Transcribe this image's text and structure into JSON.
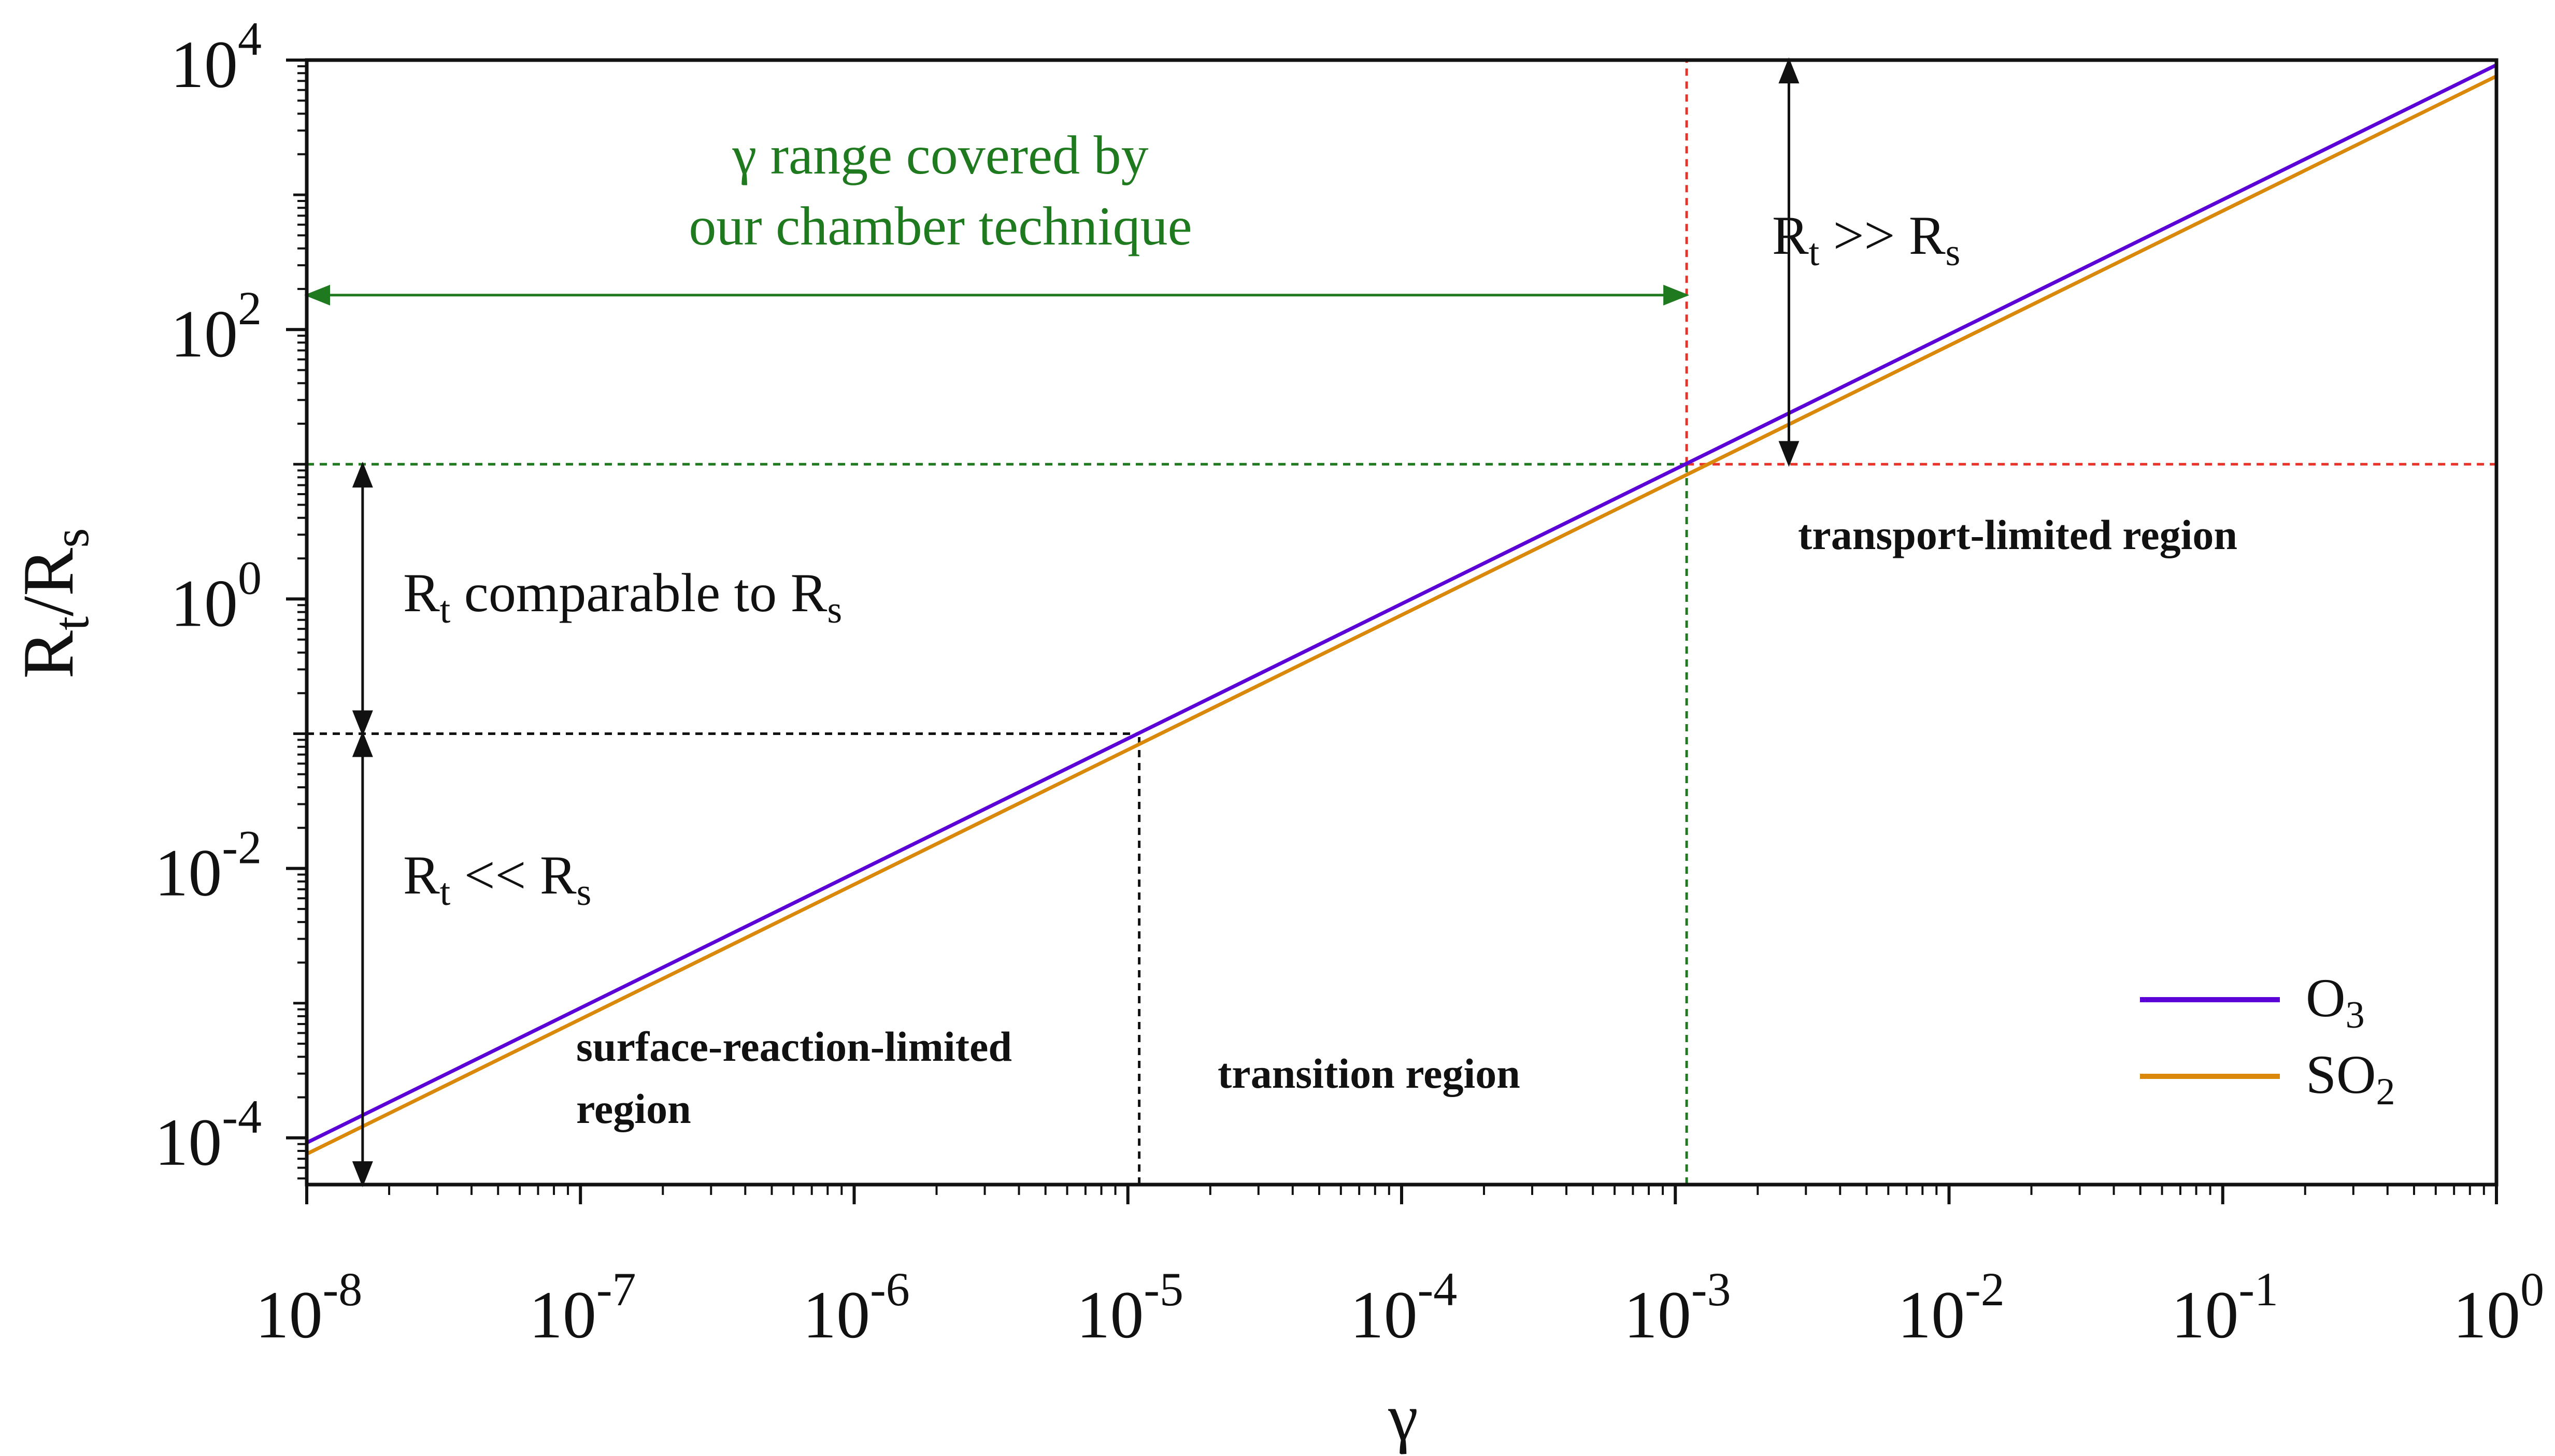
{
  "chart_data": {
    "type": "line",
    "xscale": "log",
    "yscale": "log",
    "xlim": [
      1e-08,
      1
    ],
    "ylim": [
      4.5e-05,
      10000
    ],
    "xlabel": "γ",
    "ylabel": {
      "main": "R",
      "sub1": "t",
      "mid": "/R",
      "sub2": "s"
    },
    "x_ticks": [
      {
        "value": 1e-08,
        "base": "10",
        "exp": "-8"
      },
      {
        "value": 1e-07,
        "base": "10",
        "exp": "-7"
      },
      {
        "value": 1e-06,
        "base": "10",
        "exp": "-6"
      },
      {
        "value": 1e-05,
        "base": "10",
        "exp": "-5"
      },
      {
        "value": 0.0001,
        "base": "10",
        "exp": "-4"
      },
      {
        "value": 0.001,
        "base": "10",
        "exp": "-3"
      },
      {
        "value": 0.01,
        "base": "10",
        "exp": "-2"
      },
      {
        "value": 0.1,
        "base": "10",
        "exp": "-1"
      },
      {
        "value": 1,
        "base": "10",
        "exp": "0"
      }
    ],
    "y_ticks": [
      {
        "value": 0.0001,
        "base": "10",
        "exp": "-4"
      },
      {
        "value": 0.01,
        "base": "10",
        "exp": "-2"
      },
      {
        "value": 1,
        "base": "10",
        "exp": "0"
      },
      {
        "value": 100,
        "base": "10",
        "exp": "2"
      },
      {
        "value": 10000,
        "base": "10",
        "exp": "4"
      }
    ],
    "series": [
      {
        "name": "O",
        "sub": "3",
        "color": "#5b00d6",
        "x": [
          1e-08,
          1
        ],
        "y": [
          9.2e-05,
          9200
        ]
      },
      {
        "name": "SO",
        "sub": "2",
        "color": "#d9880a",
        "x": [
          1e-08,
          1
        ],
        "y": [
          7.6e-05,
          7600
        ]
      }
    ],
    "reference_lines": [
      {
        "kind": "horizontal",
        "y": 10,
        "from_x": 1e-08,
        "to_x": 0.0011,
        "color": "#1f7a1f"
      },
      {
        "kind": "horizontal",
        "y": 10,
        "from_x": 0.0011,
        "to_x": 1,
        "color": "#e8332a"
      },
      {
        "kind": "vertical",
        "x": 0.0011,
        "from_y": 10,
        "to_y": 10000,
        "color": "#e8332a"
      },
      {
        "kind": "vertical",
        "x": 0.0011,
        "from_y": 4.5e-05,
        "to_y": 10,
        "color": "#1f7a1f"
      },
      {
        "kind": "horizontal",
        "y": 0.1,
        "from_x": 1e-08,
        "to_x": 1.1e-05,
        "color": "#111111"
      },
      {
        "kind": "vertical",
        "x": 1.1e-05,
        "from_y": 4.5e-05,
        "to_y": 0.1,
        "color": "#111111"
      }
    ],
    "arrows": [
      {
        "axis": "x",
        "from": 1e-08,
        "to": 0.0011,
        "at": 180,
        "color": "#1f7a1f"
      },
      {
        "axis": "y",
        "from": 0.1,
        "to": 10,
        "at": 1.6e-08,
        "color": "#111111"
      },
      {
        "axis": "y",
        "from": 4.5e-05,
        "to": 0.1,
        "at": 1.6e-08,
        "color": "#111111"
      },
      {
        "axis": "y",
        "from": 10,
        "to": 10000,
        "at": 0.0026,
        "color": "#111111"
      }
    ],
    "annotations": {
      "gamma_range_line1": "γ range covered by",
      "gamma_range_line2": "our chamber technique",
      "rt_much_greater": {
        "a": "R",
        "a_sub": "t",
        "mid": " >> R",
        "b_sub": "s"
      },
      "rt_comparable": {
        "a": "R",
        "a_sub": "t",
        "mid": " comparable to R",
        "b_sub": "s"
      },
      "rt_much_less": {
        "a": "R",
        "a_sub": "t",
        "mid": " << R",
        "b_sub": "s"
      },
      "transport_region": "transport-limited region",
      "transition_region": "transition region",
      "surface_region_line1": "surface-reaction-limited",
      "surface_region_line2": "region"
    },
    "legend_position": "bottom-right",
    "grid": false
  }
}
